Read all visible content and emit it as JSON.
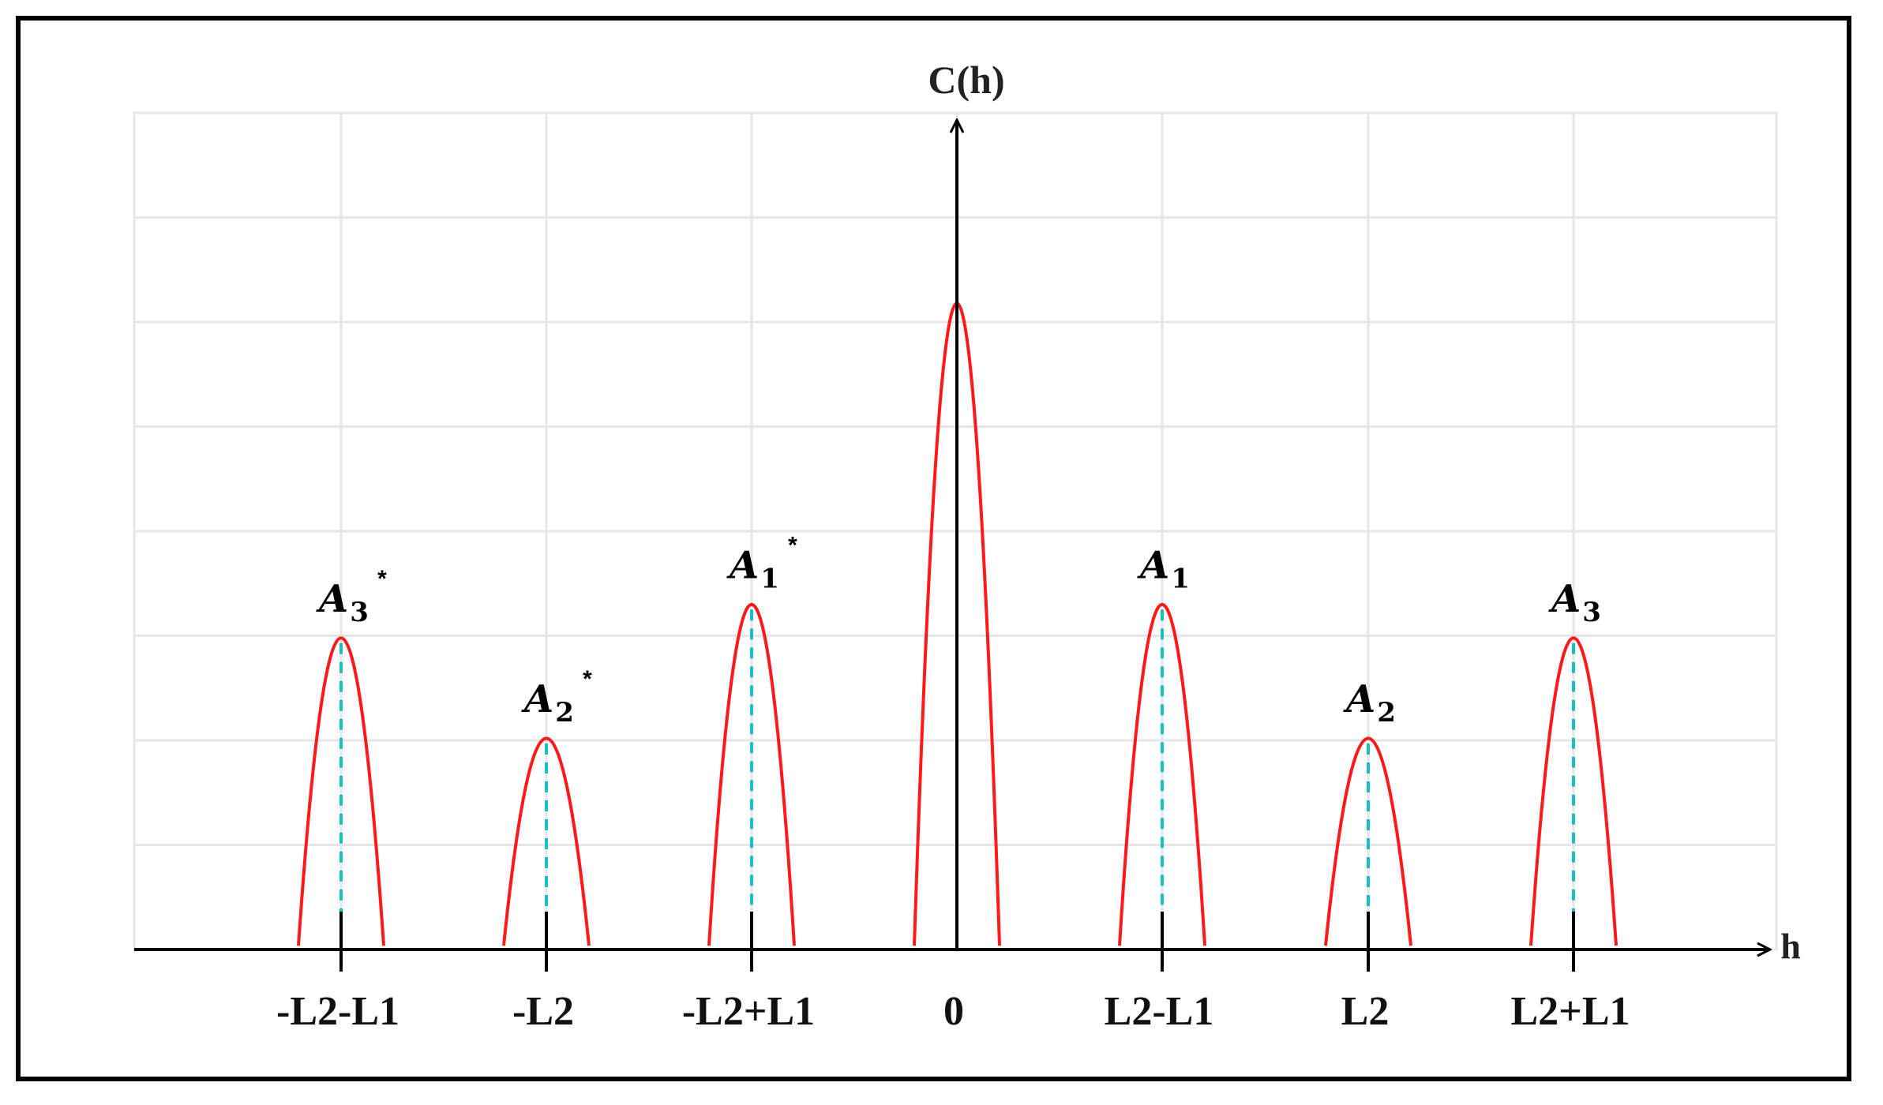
{
  "diagram": {
    "y_axis_label": "C(h)",
    "x_axis_label": "h",
    "tick_labels": [
      "-L2-L1",
      "-L2",
      "-L2+L1",
      "0",
      "L2-L1",
      "L2",
      "L2+L1"
    ],
    "peaks": [
      {
        "name": "A",
        "sub": "3",
        "star": "*",
        "tick": 0,
        "level": 0.37
      },
      {
        "name": "A",
        "sub": "2",
        "star": "*",
        "tick": 1,
        "level": 0.25
      },
      {
        "name": "A",
        "sub": "1",
        "star": "*",
        "tick": 2,
        "level": 0.41
      },
      {
        "name": "",
        "sub": "",
        "star": "",
        "tick": 3,
        "level": 0.77
      },
      {
        "name": "A",
        "sub": "1",
        "star": "",
        "tick": 4,
        "level": 0.41
      },
      {
        "name": "A",
        "sub": "2",
        "star": "",
        "tick": 5,
        "level": 0.25
      },
      {
        "name": "A",
        "sub": "3",
        "star": "",
        "tick": 6,
        "level": 0.37
      }
    ],
    "colors": {
      "curve": "#ff1a1a",
      "dashed": "#19bfc4",
      "axis": "#000000",
      "grid": "#e6e6e6"
    }
  }
}
